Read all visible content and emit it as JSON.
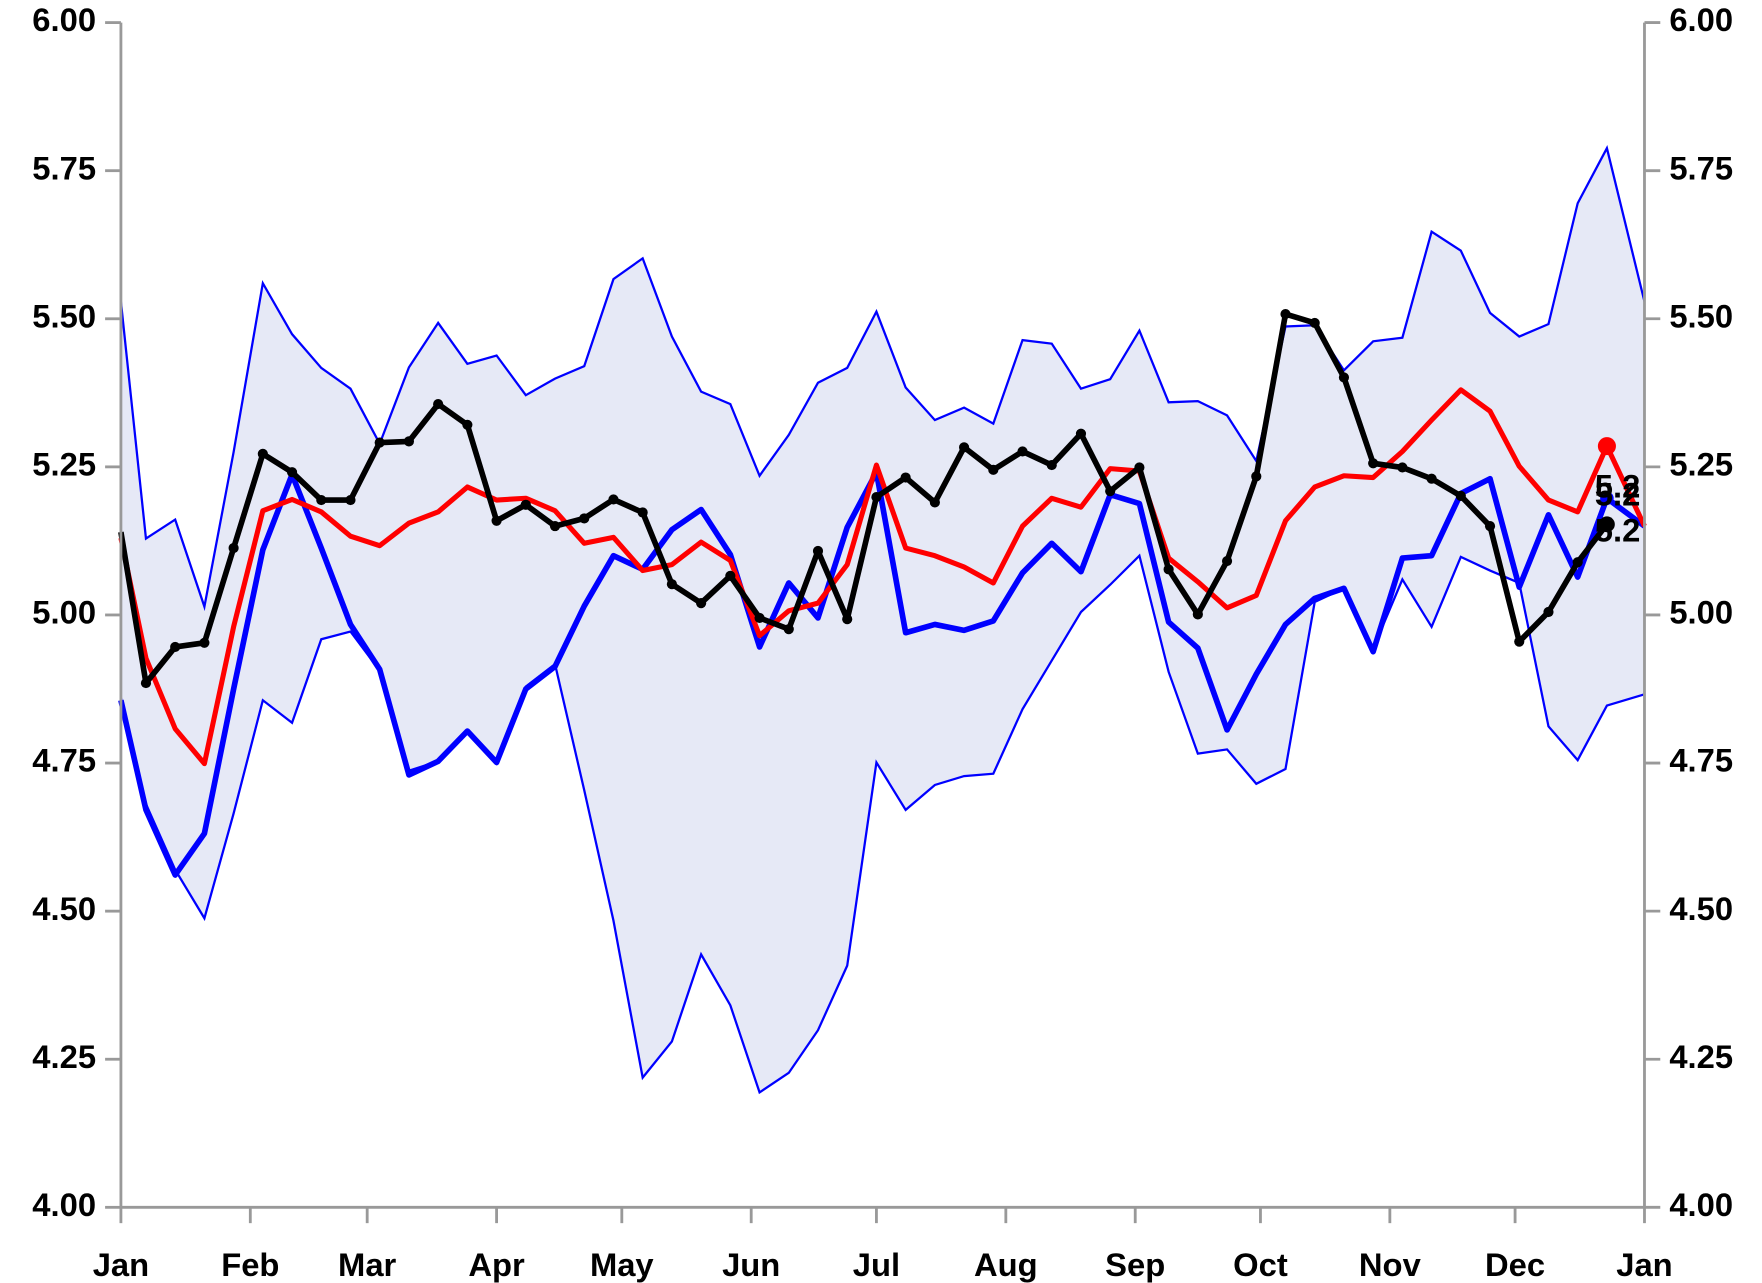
{
  "chart_data": {
    "type": "line",
    "x": [
      0,
      6,
      13,
      20,
      27,
      34,
      41,
      48,
      55,
      62,
      69,
      76,
      83,
      90,
      97,
      104,
      111,
      118,
      125,
      132,
      139,
      146,
      153,
      160,
      167,
      174,
      181,
      188,
      195,
      202,
      209,
      216,
      223,
      230,
      237,
      244,
      251,
      258,
      265,
      272,
      279,
      286,
      293,
      300,
      307,
      314,
      321,
      328,
      335,
      342,
      349,
      356,
      365
    ],
    "xlim": [
      0,
      365
    ],
    "xticks": [
      {
        "value": 0,
        "label": "Jan"
      },
      {
        "value": 31,
        "label": "Feb"
      },
      {
        "value": 59,
        "label": "Mar"
      },
      {
        "value": 90,
        "label": "Apr"
      },
      {
        "value": 120,
        "label": "May"
      },
      {
        "value": 151,
        "label": "Jun"
      },
      {
        "value": 181,
        "label": "Jul"
      },
      {
        "value": 212,
        "label": "Aug"
      },
      {
        "value": 243,
        "label": "Sep"
      },
      {
        "value": 273,
        "label": "Oct"
      },
      {
        "value": 304,
        "label": "Nov"
      },
      {
        "value": 334,
        "label": "Dec"
      },
      {
        "value": 365,
        "label": "Jan"
      }
    ],
    "ylim": [
      4,
      6
    ],
    "yticks": [
      {
        "value": 4,
        "label": "4.00"
      },
      {
        "value": 4.25,
        "label": "4.25"
      },
      {
        "value": 4.5,
        "label": "4.50"
      },
      {
        "value": 4.75,
        "label": "4.75"
      },
      {
        "value": 5,
        "label": "5.00"
      },
      {
        "value": 5.25,
        "label": "5.25"
      },
      {
        "value": 5.5,
        "label": "5.50"
      },
      {
        "value": 5.75,
        "label": "5.75"
      },
      {
        "value": 6,
        "label": "6.00"
      }
    ],
    "y2lim": [
      4,
      6
    ],
    "y2ticks": [
      {
        "value": 4,
        "label": "4.00"
      },
      {
        "value": 4.25,
        "label": "4.25"
      },
      {
        "value": 4.5,
        "label": "4.50"
      },
      {
        "value": 4.75,
        "label": "4.75"
      },
      {
        "value": 5,
        "label": "5.00"
      },
      {
        "value": 5.25,
        "label": "5.25"
      },
      {
        "value": 5.5,
        "label": "5.50"
      },
      {
        "value": 5.75,
        "label": "5.75"
      },
      {
        "value": 6,
        "label": "6.00"
      }
    ],
    "band": {
      "fill": "#e6e9f6",
      "color": "#0000ff",
      "upper": [
        5.529,
        5.129,
        5.161,
        5.014,
        5.275,
        5.56,
        5.474,
        5.417,
        5.382,
        5.289,
        5.418,
        5.493,
        5.424,
        5.438,
        5.371,
        5.399,
        5.42,
        5.567,
        5.602,
        5.47,
        5.377,
        5.356,
        5.235,
        5.304,
        5.392,
        5.417,
        5.512,
        5.384,
        5.329,
        5.35,
        5.323,
        5.464,
        5.458,
        5.382,
        5.398,
        5.48,
        5.359,
        5.361,
        5.337,
        5.26,
        5.487,
        5.489,
        5.413,
        5.462,
        5.468,
        5.647,
        5.615,
        5.51,
        5.47,
        5.491,
        5.695,
        5.788,
        5.529
      ],
      "lower": [
        4.86,
        4.681,
        4.57,
        4.488,
        4.665,
        4.856,
        4.818,
        4.959,
        4.972,
        4.906,
        4.737,
        4.753,
        4.804,
        4.749,
        4.879,
        4.917,
        4.704,
        4.484,
        4.219,
        4.28,
        4.427,
        4.341,
        4.194,
        4.227,
        4.299,
        4.408,
        4.751,
        4.671,
        4.713,
        4.728,
        4.732,
        4.841,
        4.923,
        5.005,
        5.051,
        5.1,
        4.904,
        4.766,
        4.773,
        4.715,
        4.74,
        5.022,
        5.045,
        4.943,
        5.06,
        4.98,
        5.098,
        5.075,
        5.054,
        4.812,
        4.755,
        4.847,
        4.866
      ]
    },
    "series": [
      {
        "color": "#0000ff",
        "width": 5,
        "end_marker": true,
        "values": [
          4.856,
          4.671,
          4.561,
          4.631,
          4.875,
          5.11,
          5.237,
          5.113,
          4.984,
          4.908,
          4.73,
          4.753,
          4.804,
          4.751,
          4.875,
          4.913,
          5.015,
          5.1,
          5.077,
          5.144,
          5.178,
          5.102,
          4.946,
          5.054,
          4.995,
          5.148,
          5.241,
          4.97,
          4.984,
          4.974,
          4.99,
          5.071,
          5.121,
          5.073,
          5.203,
          5.188,
          4.988,
          4.944,
          4.806,
          4.9,
          4.984,
          5.028,
          5.045,
          4.938,
          5.096,
          5.1,
          5.205,
          5.23,
          5.047,
          5.169,
          5.064,
          5.197,
          5.15
        ]
      },
      {
        "color": "#ff0000",
        "width": 4.5,
        "end_marker": true,
        "values": [
          5.13,
          4.927,
          4.808,
          4.749,
          4.98,
          5.176,
          5.195,
          5.174,
          5.133,
          5.117,
          5.155,
          5.174,
          5.216,
          5.194,
          5.197,
          5.176,
          5.121,
          5.131,
          5.075,
          5.085,
          5.123,
          5.092,
          4.965,
          5.007,
          5.02,
          5.085,
          5.253,
          5.113,
          5.1,
          5.081,
          5.054,
          5.15,
          5.197,
          5.182,
          5.247,
          5.243,
          5.096,
          5.056,
          5.012,
          5.033,
          5.159,
          5.216,
          5.235,
          5.232,
          5.276,
          5.329,
          5.38,
          5.344,
          5.251,
          5.194,
          5.174,
          5.285,
          5.15
        ]
      },
      {
        "color": "#000000",
        "width": 5,
        "markers": true,
        "values": [
          5.14,
          4.885,
          4.946,
          4.953,
          5.113,
          5.272,
          5.241,
          5.194,
          5.194,
          5.291,
          5.293,
          5.356,
          5.321,
          5.159,
          5.186,
          5.15,
          5.163,
          5.195,
          5.173,
          5.052,
          5.02,
          5.066,
          4.995,
          4.976,
          5.108,
          4.993,
          5.199,
          5.232,
          5.19,
          5.283,
          5.245,
          5.276,
          5.253,
          5.306,
          5.209,
          5.249,
          5.077,
          5.001,
          5.091,
          5.234,
          5.508,
          5.493,
          5.401,
          5.256,
          5.249,
          5.23,
          5.201,
          5.15,
          4.955,
          5.005,
          5.089,
          5.153,
          null
        ]
      }
    ],
    "annotations": [
      {
        "text": "5.2",
        "color": "#ff0000"
      },
      {
        "text": "5.2",
        "color": "#000000"
      },
      {
        "text": "5.2",
        "color": "#0000ff"
      }
    ]
  }
}
